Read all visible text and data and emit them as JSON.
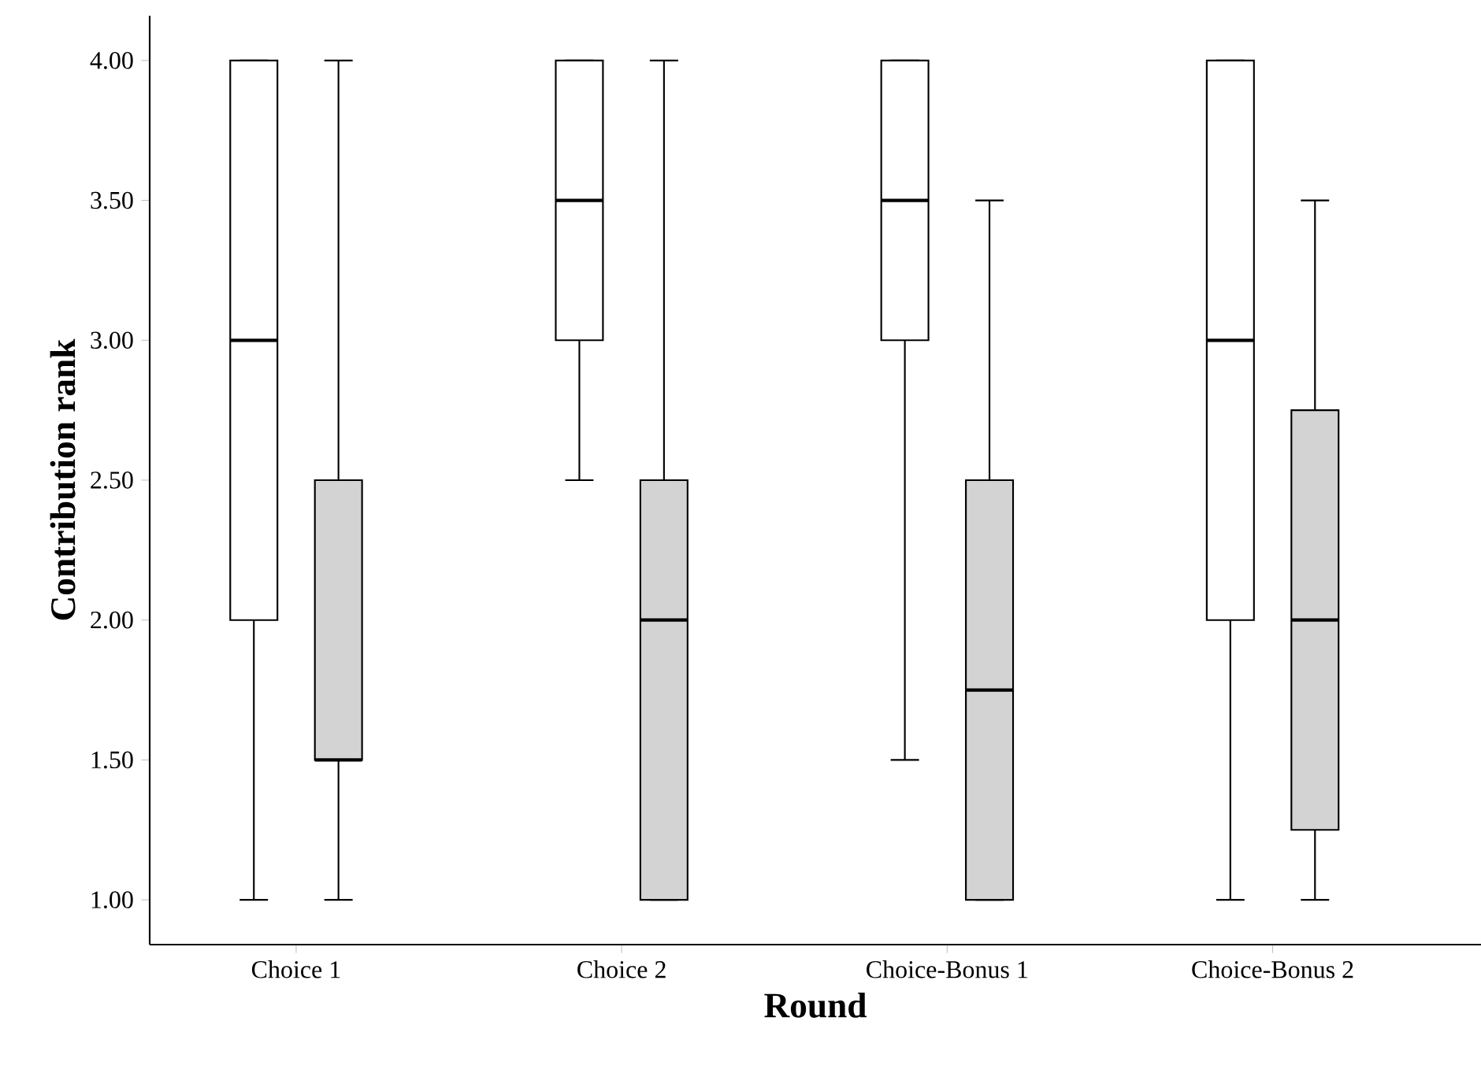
{
  "chart_data": {
    "type": "box",
    "xlabel": "Round",
    "ylabel": "Contribution rank",
    "categories": [
      "Choice 1",
      "Choice 2",
      "Choice-Bonus 1",
      "Choice-Bonus 2"
    ],
    "ylim": [
      0.84,
      4.16
    ],
    "yticks": [
      {
        "value": 1,
        "label": "1.00"
      },
      {
        "value": 1.5,
        "label": "1.50"
      },
      {
        "value": 2,
        "label": "2.00"
      },
      {
        "value": 2.5,
        "label": "2.50"
      },
      {
        "value": 3,
        "label": "3.00"
      },
      {
        "value": 3.5,
        "label": "3.50"
      },
      {
        "value": 4,
        "label": "4.00"
      }
    ],
    "series": [
      {
        "color": "#ffffff",
        "boxes": [
          {
            "low": 1,
            "q1": 2,
            "median": 3,
            "q3": 4,
            "high": 4
          },
          {
            "low": 2.5,
            "q1": 3,
            "median": 3.5,
            "q3": 4,
            "high": 4
          },
          {
            "low": 1.5,
            "q1": 3,
            "median": 3.5,
            "q3": 4,
            "high": 4
          },
          {
            "low": 1,
            "q1": 2,
            "median": 3,
            "q3": 4,
            "high": 4
          }
        ]
      },
      {
        "color": "#d3d3d3",
        "boxes": [
          {
            "low": 1,
            "q1": 1.5,
            "median": 1.5,
            "q3": 2.5,
            "high": 4
          },
          {
            "low": 1,
            "q1": 1,
            "median": 2,
            "q3": 2.5,
            "high": 4
          },
          {
            "low": 1,
            "q1": 1,
            "median": 1.75,
            "q3": 2.5,
            "high": 3.5
          },
          {
            "low": 1,
            "q1": 1.25,
            "median": 2,
            "q3": 2.75,
            "high": 3.5
          }
        ]
      }
    ]
  }
}
